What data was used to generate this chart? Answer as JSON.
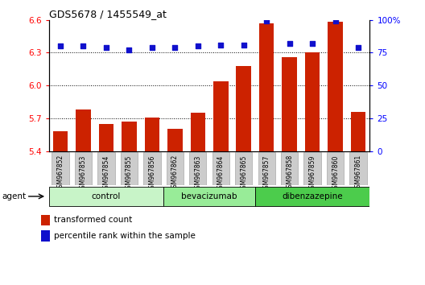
{
  "title": "GDS5678 / 1455549_at",
  "samples": [
    "GSM967852",
    "GSM967853",
    "GSM967854",
    "GSM967855",
    "GSM967856",
    "GSM967862",
    "GSM967863",
    "GSM967864",
    "GSM967865",
    "GSM967857",
    "GSM967858",
    "GSM967859",
    "GSM967860",
    "GSM967861"
  ],
  "transformed_count": [
    5.58,
    5.78,
    5.65,
    5.67,
    5.71,
    5.6,
    5.75,
    6.04,
    6.18,
    6.57,
    6.26,
    6.3,
    6.58,
    5.76
  ],
  "percentile_rank": [
    80,
    80,
    79,
    77,
    79,
    79,
    80,
    81,
    81,
    99,
    82,
    82,
    99,
    79
  ],
  "groups": [
    {
      "name": "control",
      "start": 0,
      "end": 5,
      "color": "#c8f4c8"
    },
    {
      "name": "bevacizumab",
      "start": 5,
      "end": 9,
      "color": "#98ec98"
    },
    {
      "name": "dibenzazepine",
      "start": 9,
      "end": 14,
      "color": "#4ccc4c"
    }
  ],
  "ylim_left": [
    5.4,
    6.6
  ],
  "ylim_right": [
    0,
    100
  ],
  "yticks_left": [
    5.4,
    5.7,
    6.0,
    6.3,
    6.6
  ],
  "yticks_right": [
    0,
    25,
    50,
    75,
    100
  ],
  "bar_color": "#cc2200",
  "dot_color": "#1010cc",
  "background_color": "#ffffff",
  "legend_bar_label": "transformed count",
  "legend_dot_label": "percentile rank within the sample",
  "agent_label": "agent",
  "dotted_grid": [
    5.7,
    6.0,
    6.3
  ],
  "tick_bg_color": "#cccccc",
  "tick_border_color": "#999999"
}
